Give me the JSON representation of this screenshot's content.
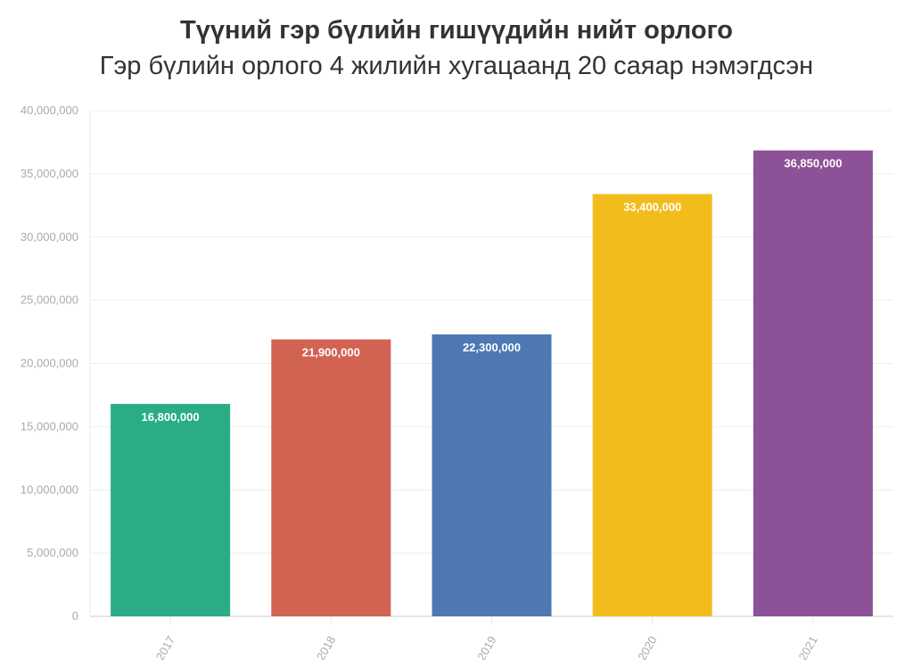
{
  "chart_data": {
    "type": "bar",
    "title": "Түүний гэр бүлийн гишүүдийн нийт орлого",
    "subtitle": "Гэр бүлийн орлого 4 жилийн хугацаанд 20 саяар нэмэгдсэн",
    "categories": [
      "2017",
      "2018",
      "2019",
      "2020",
      "2021"
    ],
    "values": [
      16800000,
      21900000,
      22300000,
      33400000,
      36850000
    ],
    "data_labels": [
      "16,800,000",
      "21,900,000",
      "22,300,000",
      "33,400,000",
      "36,850,000"
    ],
    "colors": [
      "#2aad86",
      "#d26252",
      "#4d78b4",
      "#f2bd1c",
      "#8c5196"
    ],
    "ylim": [
      0,
      40000000
    ],
    "yticks": [
      0,
      5000000,
      10000000,
      15000000,
      20000000,
      25000000,
      30000000,
      35000000,
      40000000
    ],
    "ytick_labels": [
      "0",
      "5,000,000",
      "10,000,000",
      "15,000,000",
      "20,000,000",
      "25,000,000",
      "30,000,000",
      "35,000,000",
      "40,000,000"
    ],
    "xlabel": "",
    "ylabel": "",
    "grid": true,
    "legend": "none"
  }
}
